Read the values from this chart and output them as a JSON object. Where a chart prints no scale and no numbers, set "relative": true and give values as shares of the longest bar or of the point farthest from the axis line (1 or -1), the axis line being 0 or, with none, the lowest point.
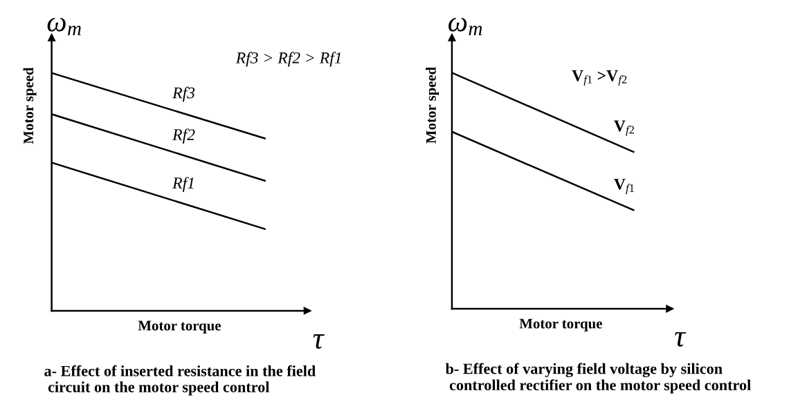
{
  "chart_data": [
    {
      "type": "line",
      "relative": true,
      "title": "a- Effect of inserted resistance in the field\n circuit on the motor speed control",
      "xlabel": "Motor torque",
      "ylabel": "Motor speed",
      "categories": [
        null,
        null
      ],
      "series": [
        {
          "name": "Rf3",
          "color": "#000000",
          "values": [
            1,
            0.725
          ]
        },
        {
          "name": "Rf2",
          "color": "#000000",
          "values": [
            0.827,
            0.547
          ]
        },
        {
          "name": "Rf1",
          "color": "#000000",
          "values": [
            0.623,
            0.344
          ]
        }
      ],
      "annotations": [
        "ω$_{m}$",
        "τ",
        "Rf3 > Rf2 > Rf1"
      ],
      "legend": false
    },
    {
      "type": "line",
      "relative": true,
      "title": "b- Effect of varying field voltage by silicon\n controlled rectifier on the motor speed control",
      "xlabel": "Motor torque",
      "ylabel": "Motor speed",
      "categories": [
        null,
        null
      ],
      "series": [
        {
          "name": "V$_{f2}$",
          "color": "#000000",
          "values": [
            1,
            0.665
          ]
        },
        {
          "name": "V$_{f1}$",
          "color": "#000000",
          "values": [
            0.75,
            0.418
          ]
        }
      ],
      "annotations": [
        "ω$_{m}$",
        "τ",
        "V$_{f1}$ >V$_{f2}$"
      ],
      "legend": false
    }
  ]
}
